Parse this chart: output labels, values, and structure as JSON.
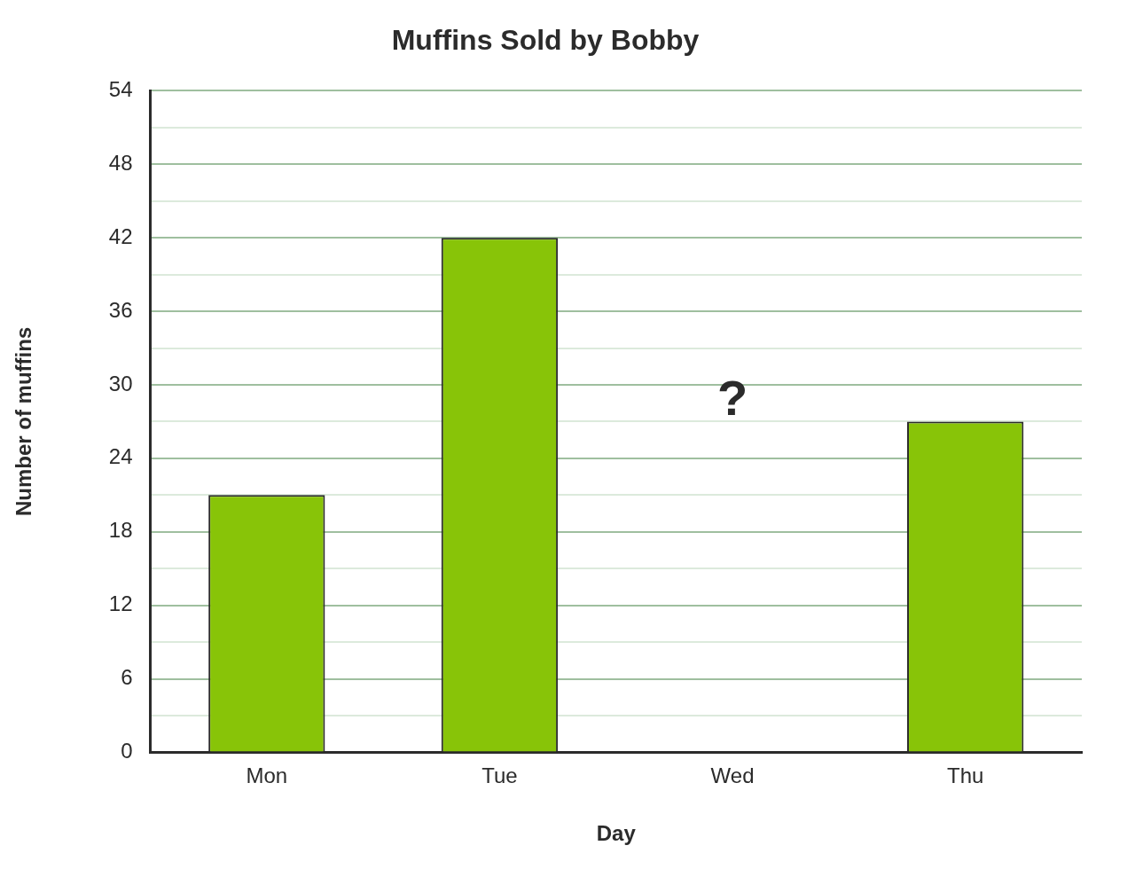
{
  "chart_data": {
    "type": "bar",
    "title": "Muffins Sold by Bobby",
    "xlabel": "Day",
    "ylabel": "Number of muffins",
    "categories": [
      "Mon",
      "Tue",
      "Wed",
      "Thu"
    ],
    "values": [
      21,
      42,
      null,
      27
    ],
    "color": "#88c408",
    "ylim": [
      0,
      54
    ],
    "yticks": [
      0,
      {
        "value": 3,
        "label": null
      },
      6,
      {
        "value": 9,
        "label": null
      },
      12,
      {
        "value": 15,
        "label": null
      },
      18,
      {
        "value": 21,
        "label": null
      },
      24,
      {
        "value": 27,
        "label": null
      },
      30,
      {
        "value": 33,
        "label": null
      },
      36,
      {
        "value": 39,
        "label": null
      },
      42,
      {
        "value": 45,
        "label": null
      },
      48,
      {
        "value": 51,
        "label": null
      },
      54
    ],
    "grid": "y",
    "legend": false,
    "annotations": [
      "?"
    ]
  }
}
